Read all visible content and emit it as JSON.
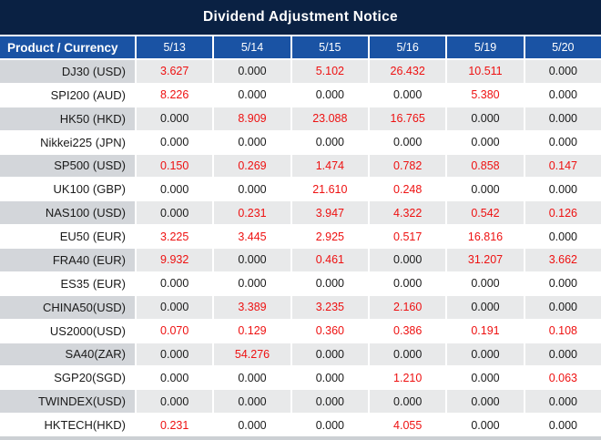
{
  "title": "Dividend Adjustment Notice",
  "columns": [
    "Product / Currency",
    "5/13",
    "5/14",
    "5/15",
    "5/16",
    "5/19",
    "5/20"
  ],
  "rows": [
    {
      "product": "DJ30 (USD)",
      "values": [
        "3.627",
        "0.000",
        "5.102",
        "26.432",
        "10.511",
        "0.000"
      ]
    },
    {
      "product": "SPI200 (AUD)",
      "values": [
        "8.226",
        "0.000",
        "0.000",
        "0.000",
        "5.380",
        "0.000"
      ]
    },
    {
      "product": "HK50 (HKD)",
      "values": [
        "0.000",
        "8.909",
        "23.088",
        "16.765",
        "0.000",
        "0.000"
      ]
    },
    {
      "product": "Nikkei225 (JPN)",
      "values": [
        "0.000",
        "0.000",
        "0.000",
        "0.000",
        "0.000",
        "0.000"
      ]
    },
    {
      "product": "SP500 (USD)",
      "values": [
        "0.150",
        "0.269",
        "1.474",
        "0.782",
        "0.858",
        "0.147"
      ]
    },
    {
      "product": "UK100 (GBP)",
      "values": [
        "0.000",
        "0.000",
        "21.610",
        "0.248",
        "0.000",
        "0.000"
      ]
    },
    {
      "product": "NAS100 (USD)",
      "values": [
        "0.000",
        "0.231",
        "3.947",
        "4.322",
        "0.542",
        "0.126"
      ]
    },
    {
      "product": "EU50 (EUR)",
      "values": [
        "3.225",
        "3.445",
        "2.925",
        "0.517",
        "16.816",
        "0.000"
      ]
    },
    {
      "product": "FRA40 (EUR)",
      "values": [
        "9.932",
        "0.000",
        "0.461",
        "0.000",
        "31.207",
        "3.662"
      ]
    },
    {
      "product": "ES35 (EUR)",
      "values": [
        "0.000",
        "0.000",
        "0.000",
        "0.000",
        "0.000",
        "0.000"
      ]
    },
    {
      "product": "CHINA50(USD)",
      "values": [
        "0.000",
        "3.389",
        "3.235",
        "2.160",
        "0.000",
        "0.000"
      ]
    },
    {
      "product": "US2000(USD)",
      "values": [
        "0.070",
        "0.129",
        "0.360",
        "0.386",
        "0.191",
        "0.108"
      ]
    },
    {
      "product": "SA40(ZAR)",
      "values": [
        "0.000",
        "54.276",
        "0.000",
        "0.000",
        "0.000",
        "0.000"
      ]
    },
    {
      "product": "SGP20(SGD)",
      "values": [
        "0.000",
        "0.000",
        "0.000",
        "1.210",
        "0.000",
        "0.063"
      ]
    },
    {
      "product": "TWINDEX(USD)",
      "values": [
        "0.000",
        "0.000",
        "0.000",
        "0.000",
        "0.000",
        "0.000"
      ]
    },
    {
      "product": "HKTECH(HKD)",
      "values": [
        "0.231",
        "0.000",
        "0.000",
        "4.055",
        "0.000",
        "0.000"
      ]
    }
  ],
  "colors": {
    "title_bg": "#0a2143",
    "header_bg": "#1a53a4",
    "stripe_label": "#d3d6da",
    "stripe_cell": "#e8e9ea",
    "accent_red": "#ee1111",
    "text_default": "#1a1a1a",
    "bottom_strip": "#ccd0d4"
  }
}
